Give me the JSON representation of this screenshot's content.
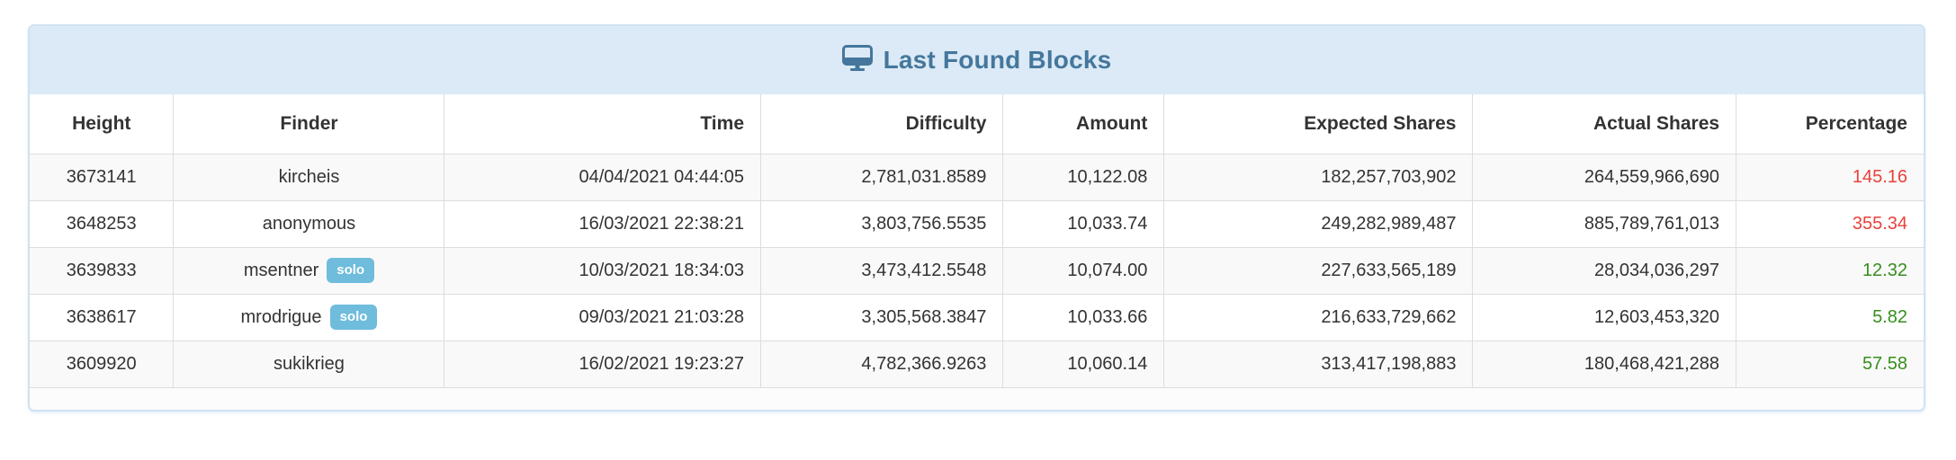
{
  "panel": {
    "title": "Last Found Blocks",
    "title_icon": "desktop-monitor-icon"
  },
  "colors": {
    "heading_bg": "#dbeaf6",
    "panel_border": "#cfe2f1",
    "title_text": "#45779c",
    "badge_bg": "#6fbcdc",
    "danger": "#e8423c",
    "success": "#378e1e",
    "row_stripe": "#f9f9f9",
    "cell_border": "#dddddd"
  },
  "table": {
    "solo_badge_label": "solo",
    "columns": [
      {
        "key": "height",
        "label": "Height",
        "align": "center",
        "width_pct": 7.6
      },
      {
        "key": "finder",
        "label": "Finder",
        "align": "center",
        "width_pct": 14.3
      },
      {
        "key": "time",
        "label": "Time",
        "align": "right",
        "width_pct": 16.7
      },
      {
        "key": "difficulty",
        "label": "Difficulty",
        "align": "right",
        "width_pct": 12.8
      },
      {
        "key": "amount",
        "label": "Amount",
        "align": "right",
        "width_pct": 8.5
      },
      {
        "key": "expected_shares",
        "label": "Expected Shares",
        "align": "right",
        "width_pct": 16.3
      },
      {
        "key": "actual_shares",
        "label": "Actual Shares",
        "align": "right",
        "width_pct": 13.9
      },
      {
        "key": "percentage",
        "label": "Percentage",
        "align": "right",
        "width_pct": 9.9
      }
    ],
    "rows": [
      {
        "height": "3673141",
        "finder": "kircheis",
        "solo": false,
        "time": "04/04/2021 04:44:05",
        "difficulty": "2,781,031.8589",
        "amount": "10,122.08",
        "expected_shares": "182,257,703,902",
        "actual_shares": "264,559,966,690",
        "percentage": "145.16",
        "percentage_status": "danger"
      },
      {
        "height": "3648253",
        "finder": "anonymous",
        "solo": false,
        "time": "16/03/2021 22:38:21",
        "difficulty": "3,803,756.5535",
        "amount": "10,033.74",
        "expected_shares": "249,282,989,487",
        "actual_shares": "885,789,761,013",
        "percentage": "355.34",
        "percentage_status": "danger"
      },
      {
        "height": "3639833",
        "finder": "msentner",
        "solo": true,
        "time": "10/03/2021 18:34:03",
        "difficulty": "3,473,412.5548",
        "amount": "10,074.00",
        "expected_shares": "227,633,565,189",
        "actual_shares": "28,034,036,297",
        "percentage": "12.32",
        "percentage_status": "success"
      },
      {
        "height": "3638617",
        "finder": "mrodrigue",
        "solo": true,
        "time": "09/03/2021 21:03:28",
        "difficulty": "3,305,568.3847",
        "amount": "10,033.66",
        "expected_shares": "216,633,729,662",
        "actual_shares": "12,603,453,320",
        "percentage": "5.82",
        "percentage_status": "success"
      },
      {
        "height": "3609920",
        "finder": "sukikrieg",
        "solo": false,
        "time": "16/02/2021 19:23:27",
        "difficulty": "4,782,366.9263",
        "amount": "10,060.14",
        "expected_shares": "313,417,198,883",
        "actual_shares": "180,468,421,288",
        "percentage": "57.58",
        "percentage_status": "success"
      }
    ]
  }
}
